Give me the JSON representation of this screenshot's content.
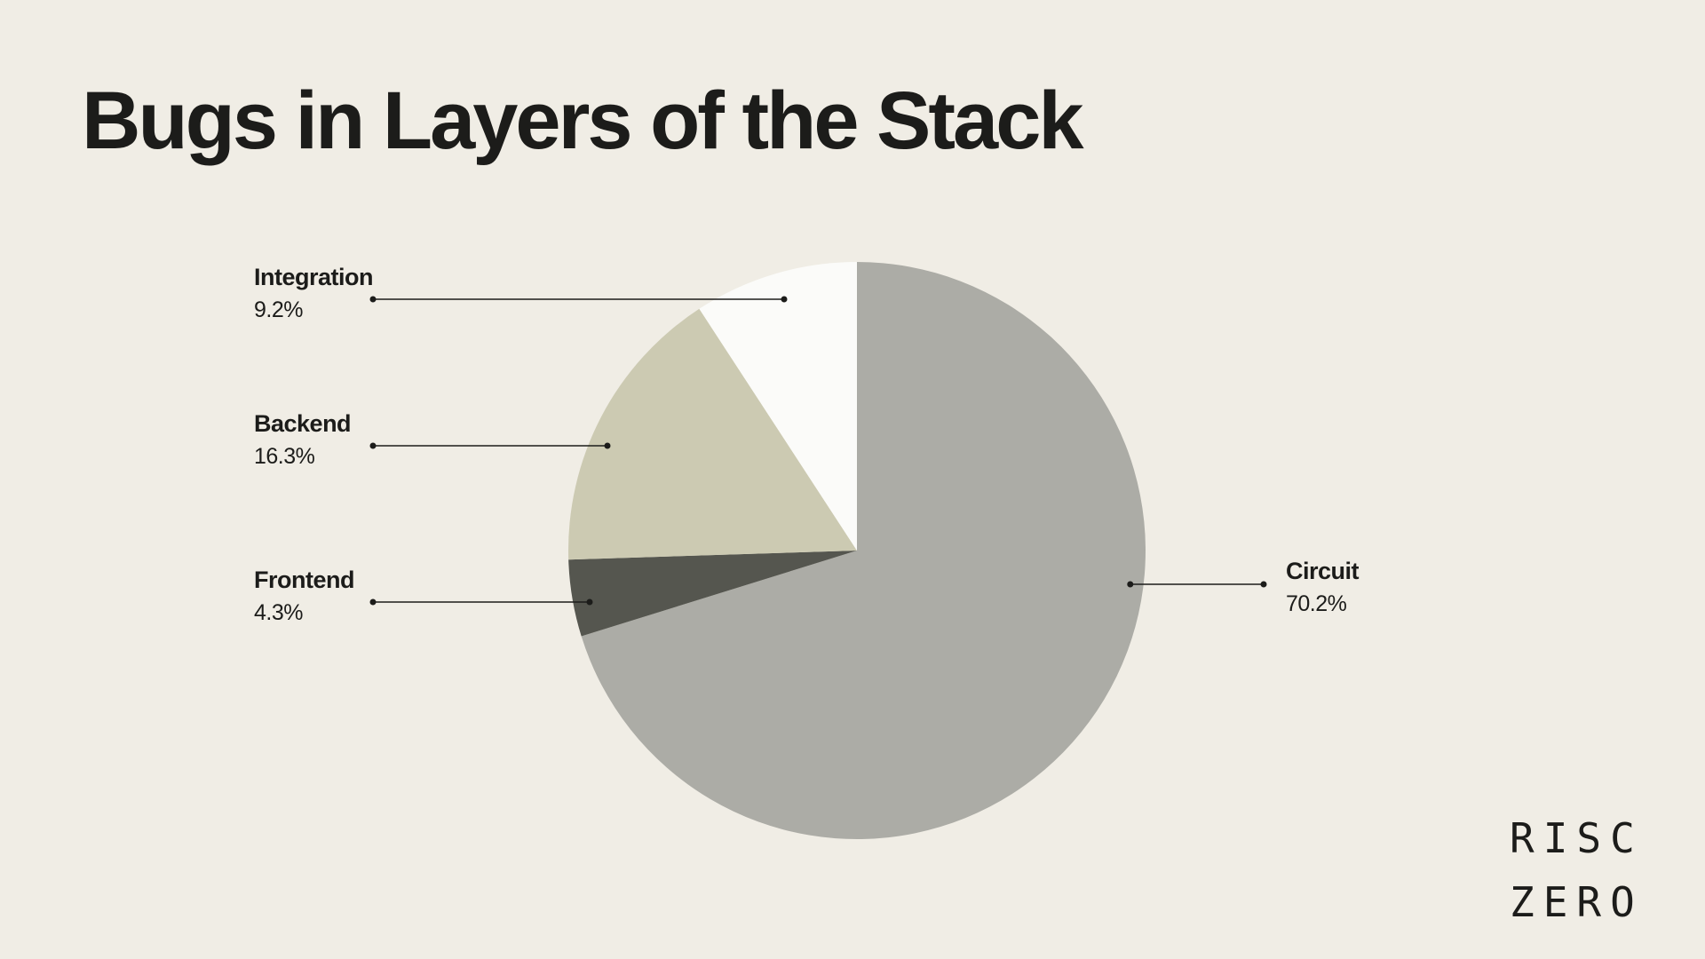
{
  "title": "Bugs in Layers of the Stack",
  "logo": {
    "line1": "RISC",
    "line2": "ZERO"
  },
  "chart_data": {
    "type": "pie",
    "title": "Bugs in Layers of the Stack",
    "start": "12 o'clock",
    "direction": "clockwise",
    "legend": "callout labels with leader lines",
    "slices": [
      {
        "label": "Circuit",
        "value": 70.2,
        "value_label": "70.2%",
        "color": "#acaca6",
        "label_side": "right"
      },
      {
        "label": "Frontend",
        "value": 4.3,
        "value_label": "4.3%",
        "color": "#55564f",
        "label_side": "left"
      },
      {
        "label": "Backend",
        "value": 16.3,
        "value_label": "16.3%",
        "color": "#cccab2",
        "label_side": "left"
      },
      {
        "label": "Integration",
        "value": 9.2,
        "value_label": "9.2%",
        "color": "#fbfbf9",
        "label_side": "left"
      }
    ]
  }
}
